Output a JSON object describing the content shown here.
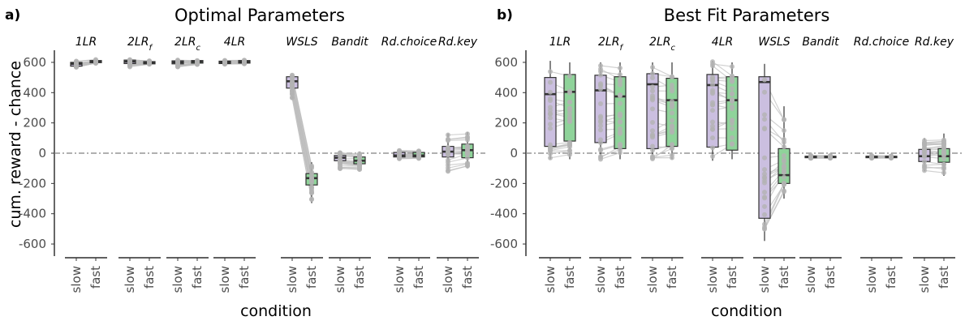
{
  "figure": {
    "colors": {
      "slow": "#cbbfe0",
      "fast": "#8fd39a",
      "lines": "#bebebe",
      "points": "#b3b3b3",
      "median": "#333333",
      "zero_line": "#808080"
    }
  },
  "chart_data": [
    {
      "type": "box",
      "panel_label": "a)",
      "title": "Optimal Parameters",
      "xlabel": "condition",
      "ylabel": "cum. reward - chance",
      "ylim": [
        -680,
        680
      ],
      "yticks": [
        600,
        400,
        200,
        0,
        -200,
        -400,
        -600
      ],
      "reference_line_y": 0,
      "conditions": [
        "slow",
        "fast"
      ],
      "facets": [
        {
          "label": "1LR",
          "sub": "",
          "slow": {
            "q1": 575,
            "med": 590,
            "q3": 600,
            "lo": 565,
            "hi": 610
          },
          "fast": {
            "q1": 598,
            "med": 605,
            "q3": 612,
            "lo": 590,
            "hi": 620
          },
          "spread_slow": 15,
          "spread_fast": 12
        },
        {
          "label": "2LR",
          "sub": "f",
          "slow": {
            "q1": 592,
            "med": 605,
            "q3": 615,
            "lo": 568,
            "hi": 620
          },
          "fast": {
            "q1": 590,
            "med": 598,
            "q3": 605,
            "lo": 585,
            "hi": 612
          },
          "spread_slow": 15,
          "spread_fast": 10
        },
        {
          "label": "2LR",
          "sub": "c",
          "slow": {
            "q1": 590,
            "med": 600,
            "q3": 610,
            "lo": 570,
            "hi": 620
          },
          "fast": {
            "q1": 595,
            "med": 605,
            "q3": 612,
            "lo": 585,
            "hi": 618
          },
          "spread_slow": 15,
          "spread_fast": 12
        },
        {
          "label": "4LR",
          "sub": "",
          "slow": {
            "q1": 592,
            "med": 600,
            "q3": 608,
            "lo": 588,
            "hi": 615
          },
          "fast": {
            "q1": 595,
            "med": 603,
            "q3": 612,
            "lo": 588,
            "hi": 618
          },
          "spread_slow": 10,
          "spread_fast": 10
        },
        {
          "label": "WSLS",
          "sub": "",
          "slow": {
            "q1": 430,
            "med": 475,
            "q3": 505,
            "lo": 360,
            "hi": 520
          },
          "fast": {
            "q1": -210,
            "med": -165,
            "q3": -135,
            "lo": -330,
            "hi": -60
          },
          "spread_slow": 45,
          "spread_fast": 50
        },
        {
          "label": "Bandit",
          "sub": "",
          "slow": {
            "q1": -50,
            "med": -30,
            "q3": -15,
            "lo": -110,
            "hi": 15
          },
          "fast": {
            "q1": -70,
            "med": -50,
            "q3": -25,
            "lo": -120,
            "hi": 10
          },
          "spread_slow": 30,
          "spread_fast": 30
        },
        {
          "label": "Rd.choice",
          "sub": "",
          "slow": {
            "q1": -25,
            "med": -15,
            "q3": 5,
            "lo": -40,
            "hi": 20
          },
          "fast": {
            "q1": -25,
            "med": -15,
            "q3": 5,
            "lo": -40,
            "hi": 20
          },
          "spread_slow": 15,
          "spread_fast": 15
        },
        {
          "label": "Rd.key",
          "sub": "",
          "slow": {
            "q1": -25,
            "med": 10,
            "q3": 45,
            "lo": -120,
            "hi": 130
          },
          "fast": {
            "q1": -30,
            "med": 20,
            "q3": 60,
            "lo": -100,
            "hi": 140
          },
          "spread_slow": 50,
          "spread_fast": 50
        }
      ]
    },
    {
      "type": "box",
      "panel_label": "b)",
      "title": "Best Fit Parameters",
      "xlabel": "condition",
      "ylabel": "",
      "ylim": [
        -680,
        680
      ],
      "yticks": [
        600,
        400,
        200,
        0,
        -200,
        -400,
        -600
      ],
      "reference_line_y": 0,
      "conditions": [
        "slow",
        "fast"
      ],
      "facets": [
        {
          "label": "1LR",
          "sub": "",
          "slow": {
            "q1": 45,
            "med": 390,
            "q3": 500,
            "lo": -40,
            "hi": 610
          },
          "fast": {
            "q1": 80,
            "med": 405,
            "q3": 520,
            "lo": -40,
            "hi": 600
          },
          "spread_slow": 200,
          "spread_fast": 200
        },
        {
          "label": "2LR",
          "sub": "f",
          "slow": {
            "q1": 70,
            "med": 415,
            "q3": 515,
            "lo": -40,
            "hi": 600
          },
          "fast": {
            "q1": 30,
            "med": 375,
            "q3": 505,
            "lo": -40,
            "hi": 600
          },
          "spread_slow": 200,
          "spread_fast": 200
        },
        {
          "label": "2LR",
          "sub": "c",
          "slow": {
            "q1": 30,
            "med": 455,
            "q3": 525,
            "lo": -40,
            "hi": 600
          },
          "fast": {
            "q1": 45,
            "med": 350,
            "q3": 495,
            "lo": -40,
            "hi": 600
          },
          "spread_slow": 200,
          "spread_fast": 200
        },
        {
          "label": "4LR",
          "sub": "",
          "slow": {
            "q1": 40,
            "med": 450,
            "q3": 520,
            "lo": -50,
            "hi": 610
          },
          "fast": {
            "q1": 20,
            "med": 350,
            "q3": 505,
            "lo": -40,
            "hi": 600
          },
          "spread_slow": 200,
          "spread_fast": 200
        },
        {
          "label": "WSLS",
          "sub": "",
          "slow": {
            "q1": -430,
            "med": 470,
            "q3": 505,
            "lo": -580,
            "hi": 590
          },
          "fast": {
            "q1": -200,
            "med": -145,
            "q3": 30,
            "lo": -300,
            "hi": 310
          },
          "spread_slow": 300,
          "spread_fast": 120
        },
        {
          "label": "Bandit",
          "sub": "",
          "slow": {
            "q1": -30,
            "med": -25,
            "q3": -20,
            "lo": -35,
            "hi": -15
          },
          "fast": {
            "q1": -30,
            "med": -25,
            "q3": -20,
            "lo": -35,
            "hi": -15
          },
          "spread_slow": 5,
          "spread_fast": 5
        },
        {
          "label": "Rd.choice",
          "sub": "",
          "slow": {
            "q1": -30,
            "med": -25,
            "q3": -20,
            "lo": -35,
            "hi": -15
          },
          "fast": {
            "q1": -30,
            "med": -25,
            "q3": -20,
            "lo": -35,
            "hi": -15
          },
          "spread_slow": 5,
          "spread_fast": 5
        },
        {
          "label": "Rd.key",
          "sub": "",
          "slow": {
            "q1": -55,
            "med": -20,
            "q3": 25,
            "lo": -120,
            "hi": 100
          },
          "fast": {
            "q1": -60,
            "med": -20,
            "q3": 30,
            "lo": -150,
            "hi": 130
          },
          "spread_slow": 60,
          "spread_fast": 60
        }
      ]
    }
  ]
}
